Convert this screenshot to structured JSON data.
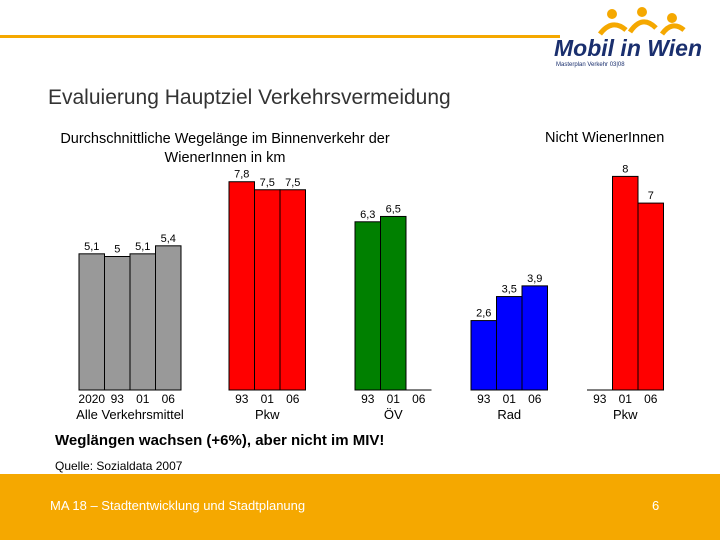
{
  "header": {
    "title": "Evaluierung Hauptziel Verkehrsvermeidung",
    "logo": "Mobil in Wien",
    "logo_sub": "Masterplan Verkehr 03|08"
  },
  "chart_data": {
    "type": "bar",
    "title": "Durchschnittliche Wegelänge im Binnenverkehr der WienerInnen in km",
    "section_label": "Nicht WienerInnen",
    "groups": [
      {
        "name": "Alle Verkehrsmittel",
        "color": "#999999",
        "categories": [
          "2020",
          "93",
          "01",
          "06"
        ],
        "values": [
          5.1,
          5,
          5.1,
          5.4
        ],
        "value_labels": [
          "5,1",
          "5",
          "5,1",
          "5,4"
        ]
      },
      {
        "name": "Pkw",
        "color": "#ff0000",
        "categories": [
          "93",
          "01",
          "06"
        ],
        "values": [
          7.8,
          7.5,
          7.5
        ],
        "value_labels": [
          "7,8",
          "7,5",
          "7,5"
        ]
      },
      {
        "name": "ÖV",
        "color": "#008000",
        "categories": [
          "93",
          "01",
          "06"
        ],
        "values": [
          6.3,
          6.5,
          null
        ],
        "value_labels": [
          "6,3",
          "6,5",
          null
        ]
      },
      {
        "name": "Rad",
        "color": "#0000ff",
        "categories": [
          "93",
          "01",
          "06"
        ],
        "values": [
          2.6,
          3.5,
          3.9
        ],
        "value_labels": [
          "2,6",
          "3,5",
          "3,9"
        ]
      },
      {
        "name": "Pkw",
        "color": "#ff0000",
        "categories": [
          "93",
          "01",
          "06"
        ],
        "values": [
          null,
          8,
          7
        ],
        "value_labels": [
          null,
          "8",
          "7"
        ]
      }
    ]
  },
  "note": "Weglängen wachsen (+6%), aber nicht im MIV!",
  "source": "Quelle: Sozialdata 2007",
  "footer": {
    "text": "MA 18 – Stadtentwicklung und Stadtplanung",
    "page": "6"
  }
}
